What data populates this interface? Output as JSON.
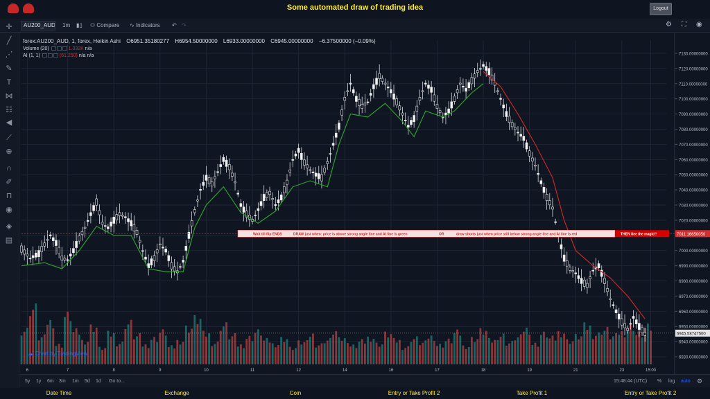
{
  "site": {
    "title": "Some automated draw of trading idea",
    "logout_label": "Logout"
  },
  "toolbar": {
    "symbol": "AU200_AUD",
    "interval": "1m",
    "compare_label": "Compare",
    "indicators_label": "Indicators"
  },
  "legend": {
    "title": "forex:AU200_AUD, 1, forex, Heikin Ashi",
    "open": "O6951.35180277",
    "high": "H6954.50000000",
    "low": "L6933.00000000",
    "close": "C6945.00000000",
    "change": "−6.37500000 (−0.09%)",
    "volume_label": "Volume (20)",
    "volume_value": "1.032K",
    "volume_na": "n/a",
    "ai_label": "AI (1, 1)",
    "ai_value": "(61.250)",
    "ai_na1": "n/a",
    "ai_na2": "n/a"
  },
  "banner": {
    "segment1": "Wait till flip ENDS",
    "segment2": "DRAW just when:  price is above strong angle line and AI line is green",
    "segment3": "OR",
    "segment4": "draw shorts just when price still below strong angle line and AI line is red",
    "segment5": "THEN See the magic!!",
    "price_tag": "7011.16650050"
  },
  "current_price_tag": "6945.58747500",
  "attribution": "Chart by TradingView",
  "timeframes": [
    "5y",
    "1y",
    "6m",
    "3m",
    "1m",
    "5d",
    "1d"
  ],
  "goto_label": "Go to...",
  "clock": "15:48:44 (UTC)",
  "scale_options": {
    "percent": "%",
    "log": "log",
    "auto": "auto"
  },
  "footer": [
    "Date Time",
    "Exchange",
    "Coin",
    "Entry or Take Profit 2",
    "Take Profit 1",
    "Entry or Take Profit 2"
  ],
  "colors": {
    "up": "#e0e0e0",
    "down": "#e0e0e0",
    "ai_green": "#2e9d2e",
    "ai_red": "#c62828",
    "vol_up": "#26a69a",
    "vol_down": "#ef5350",
    "title_yellow": "#ffeb3b"
  },
  "chart_data": {
    "type": "line",
    "y_ticks": [
      "7130.00000000",
      "7120.00000000",
      "7110.00000000",
      "7100.00000000",
      "7090.00000000",
      "7080.00000000",
      "7070.00000000",
      "7060.00000000",
      "7050.00000000",
      "7040.00000000",
      "7030.00000000",
      "7020.00000000",
      "7010.00000000",
      "7000.00000000",
      "6990.00000000",
      "6980.00000000",
      "6970.00000000",
      "6960.00000000",
      "6950.00000000",
      "6940.00000000",
      "6930.00000000"
    ],
    "x_ticks": [
      {
        "label": "6",
        "x": 2
      },
      {
        "label": "7",
        "x": 16
      },
      {
        "label": "8",
        "x": 32
      },
      {
        "label": "9",
        "x": 48
      },
      {
        "label": "10",
        "x": 64
      },
      {
        "label": "11",
        "x": 80
      },
      {
        "label": "12",
        "x": 96
      },
      {
        "label": "14",
        "x": 112
      },
      {
        "label": "16",
        "x": 128
      },
      {
        "label": "17",
        "x": 144
      },
      {
        "label": "18",
        "x": 160
      },
      {
        "label": "19",
        "x": 176
      },
      {
        "label": "21",
        "x": 192
      },
      {
        "label": "23",
        "x": 208
      },
      {
        "label": "15:00",
        "x": 218
      }
    ],
    "ylim": [
      6925,
      7135
    ],
    "xlim": [
      0,
      221
    ],
    "price_path": [
      [
        0,
        7001
      ],
      [
        3,
        6995
      ],
      [
        6,
        6998
      ],
      [
        8,
        7004
      ],
      [
        10,
        7010
      ],
      [
        12,
        7005
      ],
      [
        14,
        6995
      ],
      [
        16,
        6994
      ],
      [
        18,
        7000
      ],
      [
        20,
        7008
      ],
      [
        22,
        7015
      ],
      [
        24,
        7024
      ],
      [
        26,
        7032
      ],
      [
        28,
        7018
      ],
      [
        30,
        7015
      ],
      [
        32,
        7020
      ],
      [
        34,
        7024
      ],
      [
        36,
        7022
      ],
      [
        38,
        7018
      ],
      [
        40,
        7012
      ],
      [
        42,
        7000
      ],
      [
        44,
        6990
      ],
      [
        46,
        6995
      ],
      [
        48,
        7004
      ],
      [
        50,
        7000
      ],
      [
        52,
        6990
      ],
      [
        54,
        6986
      ],
      [
        56,
        6993
      ],
      [
        58,
        7010
      ],
      [
        60,
        7026
      ],
      [
        62,
        7040
      ],
      [
        64,
        7048
      ],
      [
        66,
        7044
      ],
      [
        68,
        7052
      ],
      [
        70,
        7060
      ],
      [
        72,
        7055
      ],
      [
        74,
        7045
      ],
      [
        76,
        7030
      ],
      [
        78,
        7024
      ],
      [
        80,
        7020
      ],
      [
        82,
        7027
      ],
      [
        84,
        7035
      ],
      [
        86,
        7038
      ],
      [
        88,
        7030
      ],
      [
        90,
        7035
      ],
      [
        92,
        7045
      ],
      [
        94,
        7060
      ],
      [
        96,
        7066
      ],
      [
        98,
        7058
      ],
      [
        100,
        7053
      ],
      [
        102,
        7050
      ],
      [
        104,
        7048
      ],
      [
        106,
        7058
      ],
      [
        108,
        7070
      ],
      [
        110,
        7082
      ],
      [
        112,
        7100
      ],
      [
        114,
        7110
      ],
      [
        116,
        7100
      ],
      [
        118,
        7095
      ],
      [
        120,
        7098
      ],
      [
        122,
        7108
      ],
      [
        124,
        7115
      ],
      [
        126,
        7110
      ],
      [
        128,
        7105
      ],
      [
        130,
        7098
      ],
      [
        132,
        7090
      ],
      [
        134,
        7082
      ],
      [
        136,
        7087
      ],
      [
        138,
        7100
      ],
      [
        140,
        7110
      ],
      [
        142,
        7106
      ],
      [
        144,
        7095
      ],
      [
        146,
        7088
      ],
      [
        148,
        7092
      ],
      [
        150,
        7100
      ],
      [
        152,
        7110
      ],
      [
        154,
        7106
      ],
      [
        156,
        7112
      ],
      [
        158,
        7118
      ],
      [
        160,
        7122
      ],
      [
        162,
        7118
      ],
      [
        164,
        7110
      ],
      [
        166,
        7100
      ],
      [
        168,
        7090
      ],
      [
        170,
        7083
      ],
      [
        172,
        7078
      ],
      [
        174,
        7074
      ],
      [
        176,
        7064
      ],
      [
        178,
        7056
      ],
      [
        180,
        7045
      ],
      [
        182,
        7035
      ],
      [
        184,
        7028
      ],
      [
        186,
        7010
      ],
      [
        188,
        6995
      ],
      [
        190,
        6988
      ],
      [
        192,
        6985
      ],
      [
        194,
        6980
      ],
      [
        196,
        6977
      ],
      [
        198,
        6987
      ],
      [
        200,
        6990
      ],
      [
        202,
        6980
      ],
      [
        204,
        6968
      ],
      [
        206,
        6960
      ],
      [
        208,
        6953
      ],
      [
        210,
        6948
      ],
      [
        212,
        6956
      ],
      [
        214,
        6950
      ],
      [
        216,
        6945
      ]
    ],
    "ai_green_path": [
      [
        0,
        6990
      ],
      [
        8,
        6992
      ],
      [
        14,
        6988
      ],
      [
        20,
        7000
      ],
      [
        26,
        7016
      ],
      [
        32,
        7010
      ],
      [
        38,
        7010
      ],
      [
        44,
        6988
      ],
      [
        50,
        6986
      ],
      [
        56,
        6986
      ],
      [
        60,
        7015
      ],
      [
        64,
        7030
      ],
      [
        70,
        7042
      ],
      [
        76,
        7025
      ],
      [
        82,
        7018
      ],
      [
        88,
        7026
      ],
      [
        94,
        7042
      ],
      [
        100,
        7046
      ],
      [
        106,
        7042
      ],
      [
        110,
        7070
      ],
      [
        114,
        7090
      ],
      [
        120,
        7088
      ],
      [
        126,
        7097
      ],
      [
        132,
        7085
      ],
      [
        136,
        7075
      ],
      [
        140,
        7092
      ],
      [
        146,
        7088
      ],
      [
        150,
        7092
      ],
      [
        156,
        7104
      ],
      [
        160,
        7110
      ]
    ],
    "ai_red_path": [
      [
        160,
        7118
      ],
      [
        166,
        7108
      ],
      [
        172,
        7090
      ],
      [
        178,
        7070
      ],
      [
        184,
        7048
      ],
      [
        188,
        7020
      ],
      [
        192,
        7000
      ],
      [
        198,
        6990
      ],
      [
        204,
        6982
      ],
      [
        210,
        6970
      ],
      [
        216,
        6955
      ]
    ],
    "volume": [
      [
        0,
        0.32
      ],
      [
        3,
        0.52
      ],
      [
        6,
        0.25
      ],
      [
        9,
        0.4
      ],
      [
        12,
        0.18
      ],
      [
        15,
        0.45
      ],
      [
        18,
        0.3
      ],
      [
        21,
        0.22
      ],
      [
        24,
        0.35
      ],
      [
        27,
        0.15
      ],
      [
        30,
        0.28
      ],
      [
        33,
        0.2
      ],
      [
        36,
        0.38
      ],
      [
        39,
        0.26
      ],
      [
        42,
        0.18
      ],
      [
        45,
        0.24
      ],
      [
        48,
        0.3
      ],
      [
        51,
        0.16
      ],
      [
        54,
        0.22
      ],
      [
        57,
        0.34
      ],
      [
        60,
        0.42
      ],
      [
        63,
        0.28
      ],
      [
        66,
        0.2
      ],
      [
        69,
        0.36
      ],
      [
        72,
        0.26
      ],
      [
        75,
        0.18
      ],
      [
        78,
        0.25
      ],
      [
        81,
        0.3
      ],
      [
        84,
        0.22
      ],
      [
        87,
        0.19
      ],
      [
        90,
        0.24
      ],
      [
        93,
        0.15
      ],
      [
        96,
        0.2
      ],
      [
        99,
        0.27
      ],
      [
        102,
        0.18
      ],
      [
        105,
        0.22
      ],
      [
        108,
        0.3
      ],
      [
        111,
        0.23
      ],
      [
        114,
        0.17
      ],
      [
        117,
        0.21
      ],
      [
        120,
        0.25
      ],
      [
        123,
        0.19
      ],
      [
        126,
        0.28
      ],
      [
        129,
        0.22
      ],
      [
        132,
        0.16
      ],
      [
        135,
        0.24
      ],
      [
        138,
        0.2
      ],
      [
        141,
        0.26
      ],
      [
        144,
        0.18
      ],
      [
        147,
        0.22
      ],
      [
        150,
        0.29
      ],
      [
        153,
        0.17
      ],
      [
        156,
        0.24
      ],
      [
        159,
        0.31
      ],
      [
        162,
        0.22
      ],
      [
        165,
        0.27
      ],
      [
        168,
        0.2
      ],
      [
        171,
        0.25
      ],
      [
        174,
        0.33
      ],
      [
        177,
        0.19
      ],
      [
        180,
        0.28
      ],
      [
        183,
        0.24
      ],
      [
        186,
        0.3
      ],
      [
        189,
        0.22
      ],
      [
        192,
        0.26
      ],
      [
        195,
        0.35
      ],
      [
        198,
        0.28
      ],
      [
        201,
        0.32
      ],
      [
        204,
        0.26
      ],
      [
        207,
        0.3
      ],
      [
        210,
        0.36
      ],
      [
        213,
        0.28
      ],
      [
        216,
        0.34
      ]
    ]
  }
}
